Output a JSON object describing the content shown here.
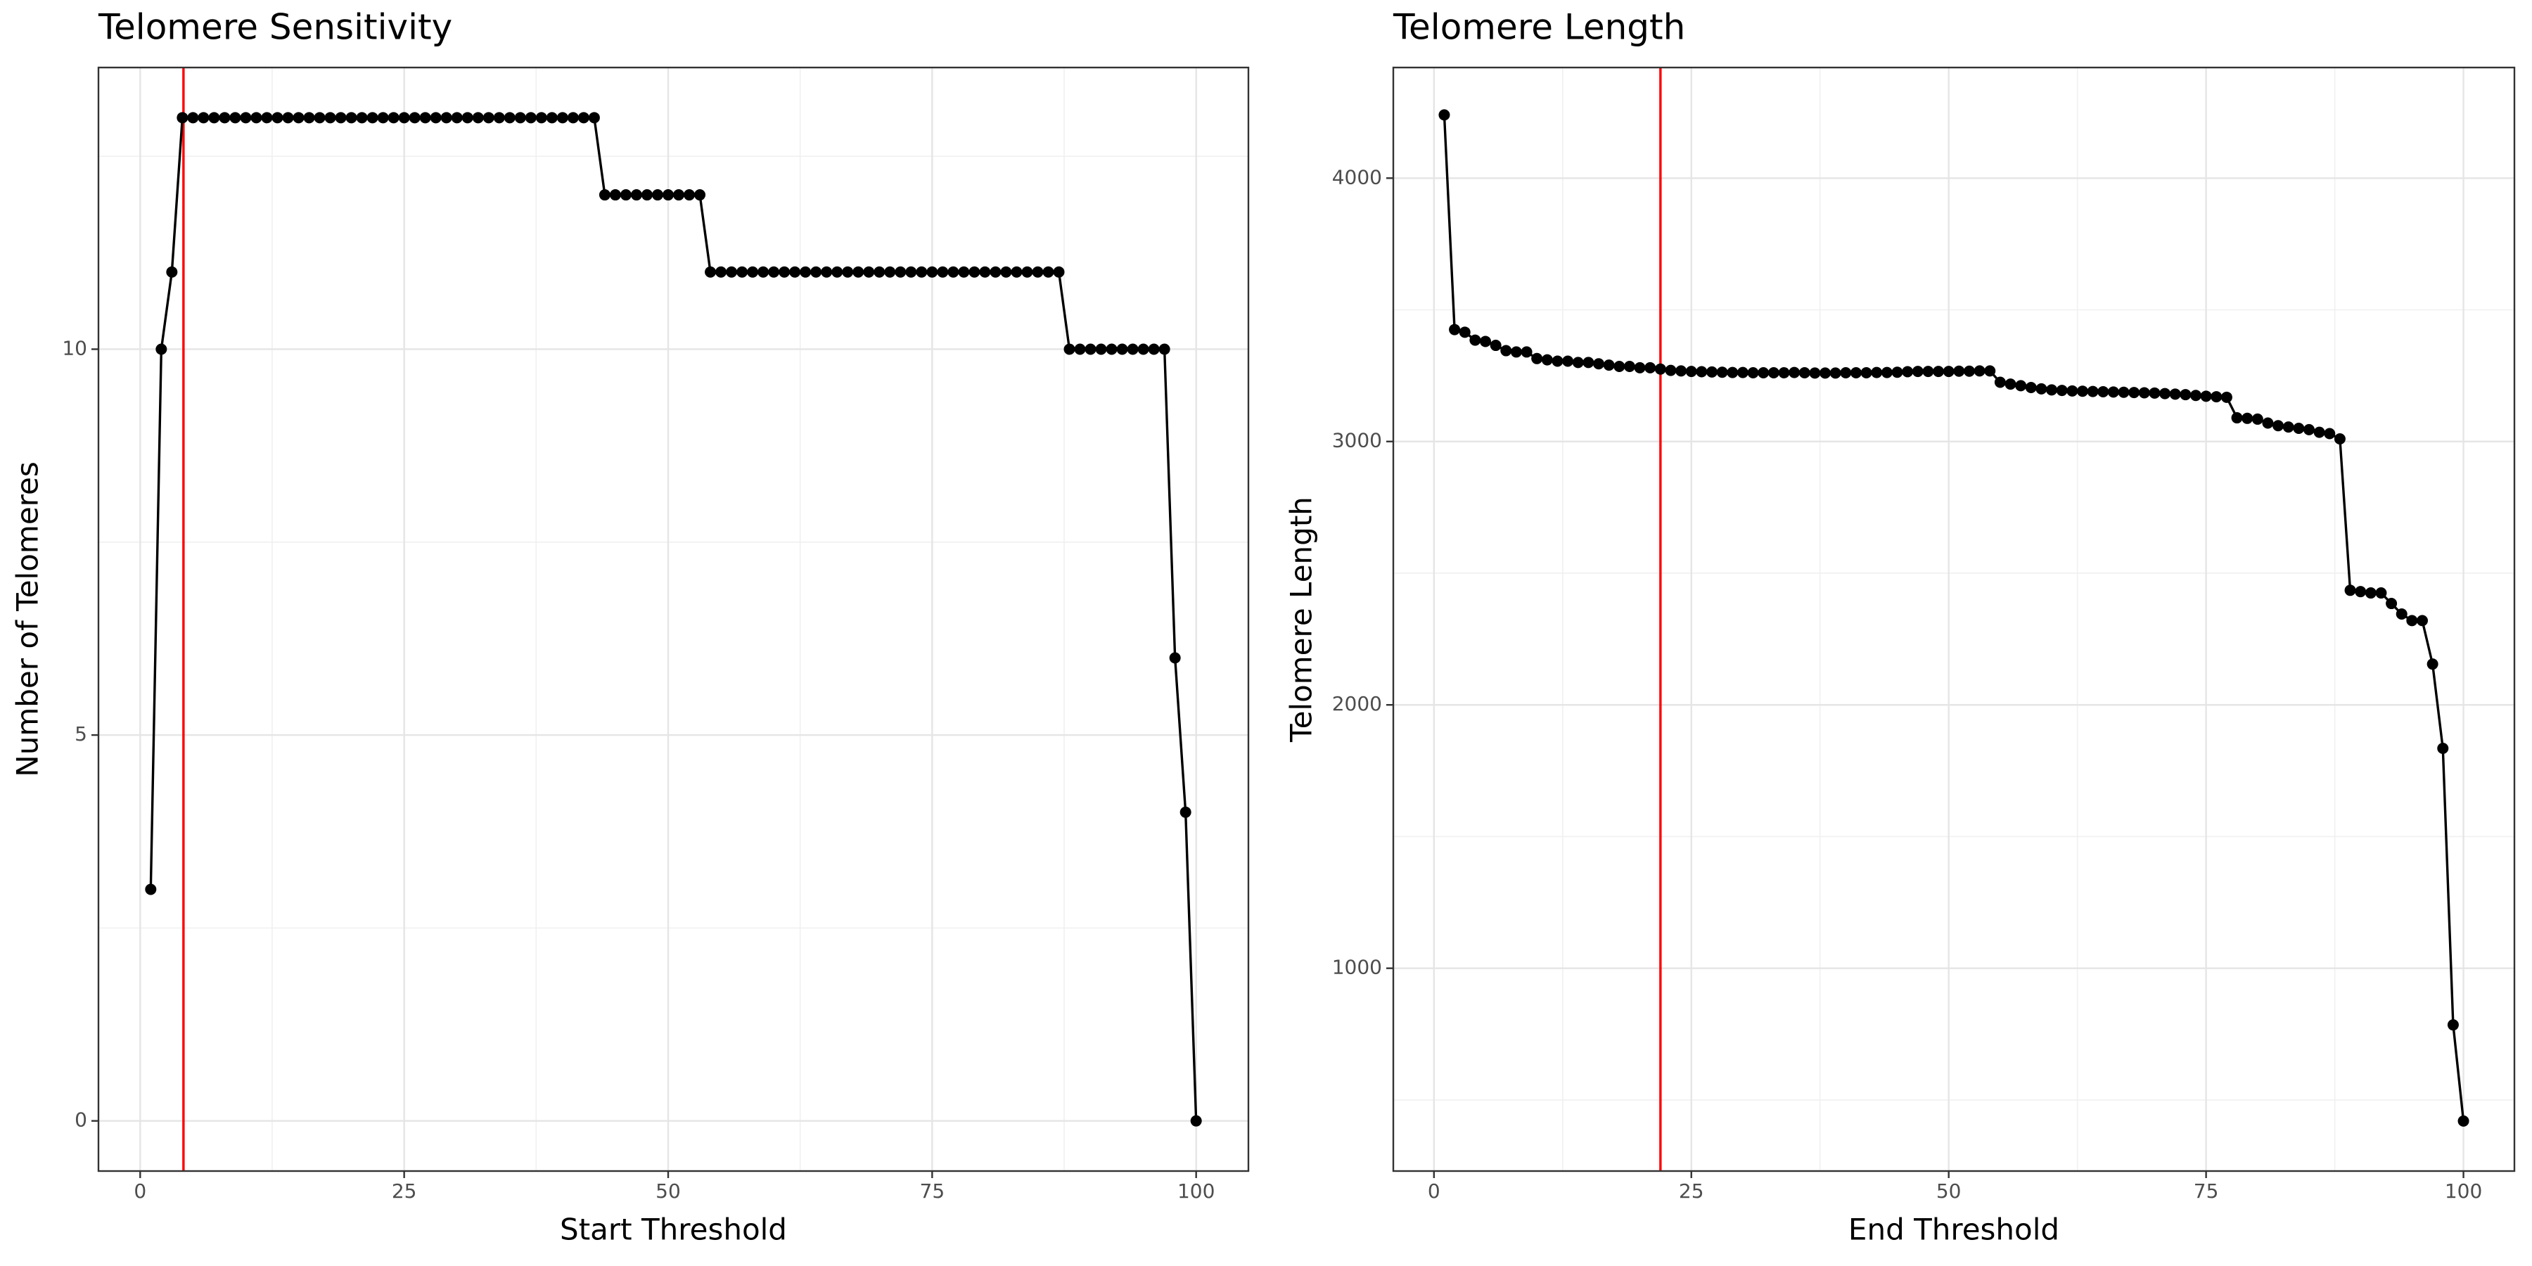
{
  "chart_data": [
    {
      "type": "line",
      "title": "Telomere Sensitivity",
      "xlabel": "Start Threshold",
      "ylabel": "Number of Telomeres",
      "x": [
        1,
        2,
        3,
        4,
        5,
        6,
        7,
        8,
        9,
        10,
        11,
        12,
        13,
        14,
        15,
        16,
        17,
        18,
        19,
        20,
        21,
        22,
        23,
        24,
        25,
        26,
        27,
        28,
        29,
        30,
        31,
        32,
        33,
        34,
        35,
        36,
        37,
        38,
        39,
        40,
        41,
        42,
        43,
        44,
        45,
        46,
        47,
        48,
        49,
        50,
        51,
        52,
        53,
        54,
        55,
        56,
        57,
        58,
        59,
        60,
        61,
        62,
        63,
        64,
        65,
        66,
        67,
        68,
        69,
        70,
        71,
        72,
        73,
        74,
        75,
        76,
        77,
        78,
        79,
        80,
        81,
        82,
        83,
        84,
        85,
        86,
        87,
        88,
        89,
        90,
        91,
        92,
        93,
        94,
        95,
        96,
        97,
        98,
        99,
        100
      ],
      "values": [
        3,
        10,
        11,
        13,
        13,
        13,
        13,
        13,
        13,
        13,
        13,
        13,
        13,
        13,
        13,
        13,
        13,
        13,
        13,
        13,
        13,
        13,
        13,
        13,
        13,
        13,
        13,
        13,
        13,
        13,
        13,
        13,
        13,
        13,
        13,
        13,
        13,
        13,
        13,
        13,
        13,
        13,
        13,
        12,
        12,
        12,
        12,
        12,
        12,
        12,
        12,
        12,
        12,
        11,
        11,
        11,
        11,
        11,
        11,
        11,
        11,
        11,
        11,
        11,
        11,
        11,
        11,
        11,
        11,
        11,
        11,
        11,
        11,
        11,
        11,
        11,
        11,
        11,
        11,
        11,
        11,
        11,
        11,
        11,
        11,
        11,
        11,
        10,
        10,
        10,
        10,
        10,
        10,
        10,
        10,
        10,
        10,
        6,
        4,
        0
      ],
      "color": "#000000",
      "markers": true,
      "xlim": [
        -3.95,
        104.95
      ],
      "xticks": [
        0,
        25,
        50,
        75,
        100
      ],
      "ylim": [
        -0.65,
        13.65
      ],
      "yticks": [
        0,
        5,
        10
      ],
      "grid": true,
      "vline": {
        "value": 4.1,
        "color": "#ff0000"
      }
    },
    {
      "type": "line",
      "title": "Telomere Length",
      "xlabel": "End Threshold",
      "ylabel": "Telomere Length",
      "x": [
        1,
        2,
        3,
        4,
        5,
        6,
        7,
        8,
        9,
        10,
        11,
        12,
        13,
        14,
        15,
        16,
        17,
        18,
        19,
        20,
        21,
        22,
        23,
        24,
        25,
        26,
        27,
        28,
        29,
        30,
        31,
        32,
        33,
        34,
        35,
        36,
        37,
        38,
        39,
        40,
        41,
        42,
        43,
        44,
        45,
        46,
        47,
        48,
        49,
        50,
        51,
        52,
        53,
        54,
        55,
        56,
        57,
        58,
        59,
        60,
        61,
        62,
        63,
        64,
        65,
        66,
        67,
        68,
        69,
        70,
        71,
        72,
        73,
        74,
        75,
        76,
        77,
        78,
        79,
        80,
        81,
        82,
        83,
        84,
        85,
        86,
        87,
        88,
        89,
        90,
        91,
        92,
        93,
        94,
        95,
        96,
        97,
        98,
        99,
        100
      ],
      "values": [
        4240,
        3425,
        3415,
        3385,
        3380,
        3365,
        3345,
        3340,
        3340,
        3315,
        3310,
        3305,
        3305,
        3300,
        3300,
        3295,
        3290,
        3285,
        3285,
        3280,
        3280,
        3275,
        3270,
        3268,
        3266,
        3265,
        3264,
        3263,
        3262,
        3262,
        3261,
        3261,
        3261,
        3261,
        3262,
        3261,
        3260,
        3260,
        3260,
        3261,
        3261,
        3261,
        3262,
        3262,
        3263,
        3265,
        3266,
        3266,
        3266,
        3266,
        3267,
        3267,
        3268,
        3268,
        3225,
        3218,
        3212,
        3205,
        3200,
        3196,
        3194,
        3192,
        3191,
        3190,
        3189,
        3188,
        3187,
        3186,
        3185,
        3184,
        3182,
        3180,
        3178,
        3175,
        3172,
        3170,
        3168,
        3090,
        3088,
        3085,
        3070,
        3060,
        3055,
        3050,
        3045,
        3035,
        3030,
        3010,
        2435,
        2430,
        2425,
        2425,
        2385,
        2345,
        2320,
        2320,
        2155,
        1835,
        785,
        420
      ],
      "color": "#000000",
      "markers": true,
      "xlim": [
        -3.95,
        104.95
      ],
      "xticks": [
        0,
        25,
        50,
        75,
        100
      ],
      "ylim": [
        230,
        4420
      ],
      "yticks": [
        1000,
        2000,
        3000,
        4000
      ],
      "grid": true,
      "vline": {
        "value": 22,
        "color": "#ff0000"
      }
    }
  ]
}
